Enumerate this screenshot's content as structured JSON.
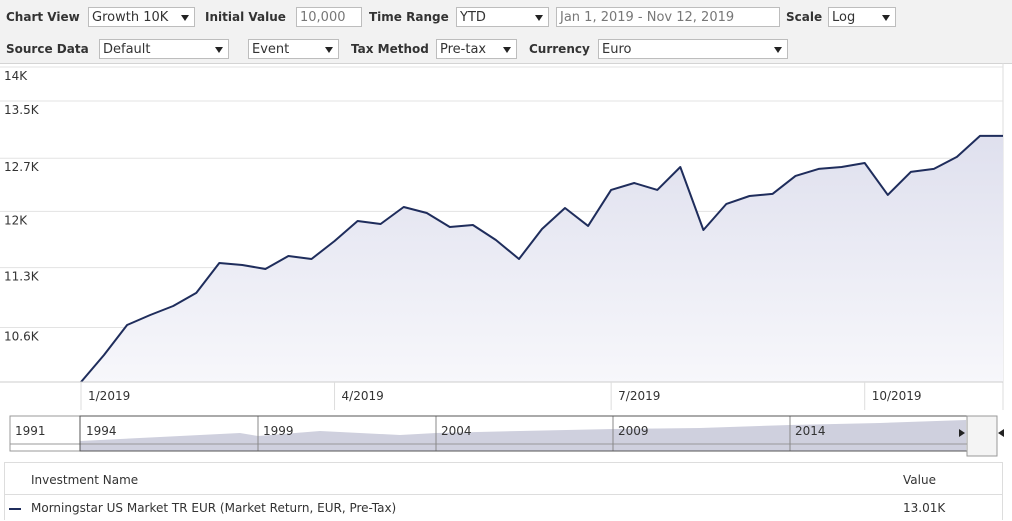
{
  "toolbar": {
    "chart_view": {
      "label": "Chart View",
      "value": "Growth 10K"
    },
    "initial_value": {
      "label": "Initial Value",
      "value": "10,000"
    },
    "time_range": {
      "label": "Time Range",
      "value": "YTD"
    },
    "date_range": "Jan 1, 2019 - Nov 12, 2019",
    "scale": {
      "label": "Scale",
      "value": "Log"
    },
    "source_data": {
      "label": "Source Data",
      "value": "Default"
    },
    "event": "Event",
    "tax_method": {
      "label": "Tax Method",
      "value": "Pre-tax"
    },
    "currency": {
      "label": "Currency",
      "value": "Euro"
    }
  },
  "chart_data": {
    "type": "line",
    "log_scale": true,
    "grid": true,
    "color": "#1f2d5c",
    "categories": [
      "1/2019",
      null,
      null,
      null,
      null,
      null,
      null,
      null,
      null,
      null,
      null,
      "4/2019",
      null,
      null,
      null,
      null,
      null,
      null,
      null,
      null,
      null,
      null,
      null,
      "7/2019",
      null,
      null,
      null,
      null,
      null,
      null,
      null,
      null,
      null,
      null,
      "10/2019",
      null,
      null,
      null,
      null,
      null,
      null
    ],
    "values": [
      10000,
      10293,
      10628,
      10742,
      10846,
      10998,
      11356,
      11331,
      11283,
      11441,
      11404,
      11626,
      11877,
      11839,
      12056,
      11979,
      11801,
      11826,
      11638,
      11404,
      11776,
      12043,
      11814,
      12277,
      12369,
      12277,
      12582,
      11763,
      12095,
      12198,
      12225,
      12462,
      12556,
      12582,
      12636,
      12212,
      12516,
      12556,
      12718,
      13006,
      13006
    ],
    "ylim": [
      10000,
      14000
    ],
    "yticks": [
      {
        "value": 14000,
        "label": "14K"
      },
      {
        "value": 13500,
        "label": "13.5K"
      },
      {
        "value": 12700,
        "label": "12.7K"
      },
      {
        "value": 12000,
        "label": "12K"
      },
      {
        "value": 11300,
        "label": "11.3K"
      },
      {
        "value": 10600,
        "label": "10.6K"
      }
    ]
  },
  "navigator": {
    "labels": [
      "1991",
      "1994",
      "1999",
      "2004",
      "2009",
      "2014"
    ]
  },
  "table": {
    "headers": [
      "Investment Name",
      "Value"
    ],
    "rows": [
      [
        "Morningstar US Market TR EUR (Market Return, EUR, Pre-Tax)",
        "13.01K"
      ]
    ]
  }
}
